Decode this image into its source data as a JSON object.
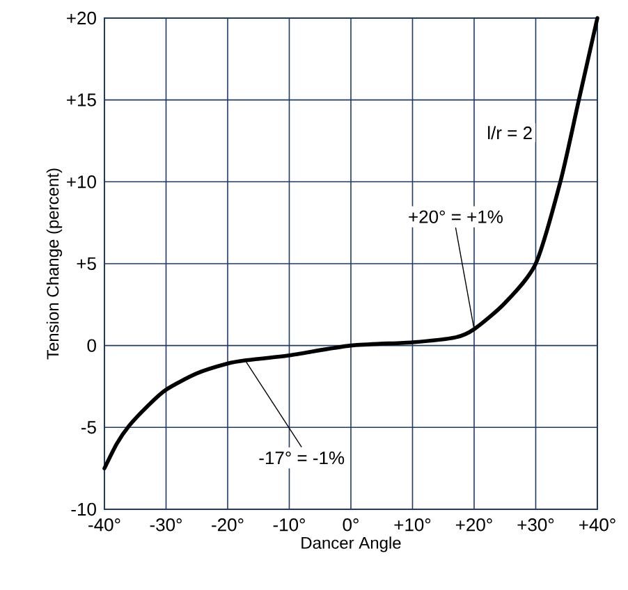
{
  "chart_data": {
    "type": "line",
    "xlabel": "Dancer Angle",
    "ylabel": "Tension Change (percent)",
    "xlim": [
      -40,
      40
    ],
    "ylim": [
      -10,
      20
    ],
    "xticks": [
      {
        "value": -40,
        "label": "-40°"
      },
      {
        "value": -30,
        "label": "-30°"
      },
      {
        "value": -20,
        "label": "-20°"
      },
      {
        "value": -10,
        "label": "-10°"
      },
      {
        "value": 0,
        "label": "0°"
      },
      {
        "value": 10,
        "label": "+10°"
      },
      {
        "value": 20,
        "label": "+20°"
      },
      {
        "value": 30,
        "label": "+30°"
      },
      {
        "value": 40,
        "label": "+40°"
      }
    ],
    "yticks": [
      -10,
      -5,
      0,
      {
        "value": 5,
        "label": "+5"
      },
      {
        "value": 10,
        "label": "+10"
      },
      {
        "value": 15,
        "label": "+15"
      },
      {
        "value": 20,
        "label": "+20"
      }
    ],
    "grid": true,
    "marker": "none",
    "line_style": "solid",
    "series": [
      {
        "name": "l/r = 2",
        "color": "#000000",
        "x": [
          -40,
          -38,
          -36,
          -33,
          -30,
          -25,
          -20,
          -17,
          -10,
          0,
          10,
          17,
          20,
          25,
          30,
          34,
          37,
          40
        ],
        "values": [
          -7.5,
          -6.0,
          -4.9,
          -3.7,
          -2.7,
          -1.7,
          -1.1,
          -0.9,
          -0.6,
          0,
          0.2,
          0.5,
          1,
          2.6,
          5,
          10,
          15,
          20
        ]
      }
    ],
    "annotations": [
      {
        "text": "+20° = +1%",
        "x": 20,
        "y": 1
      },
      {
        "text": "-17° = -1%",
        "x": -17,
        "y": -1
      }
    ]
  }
}
